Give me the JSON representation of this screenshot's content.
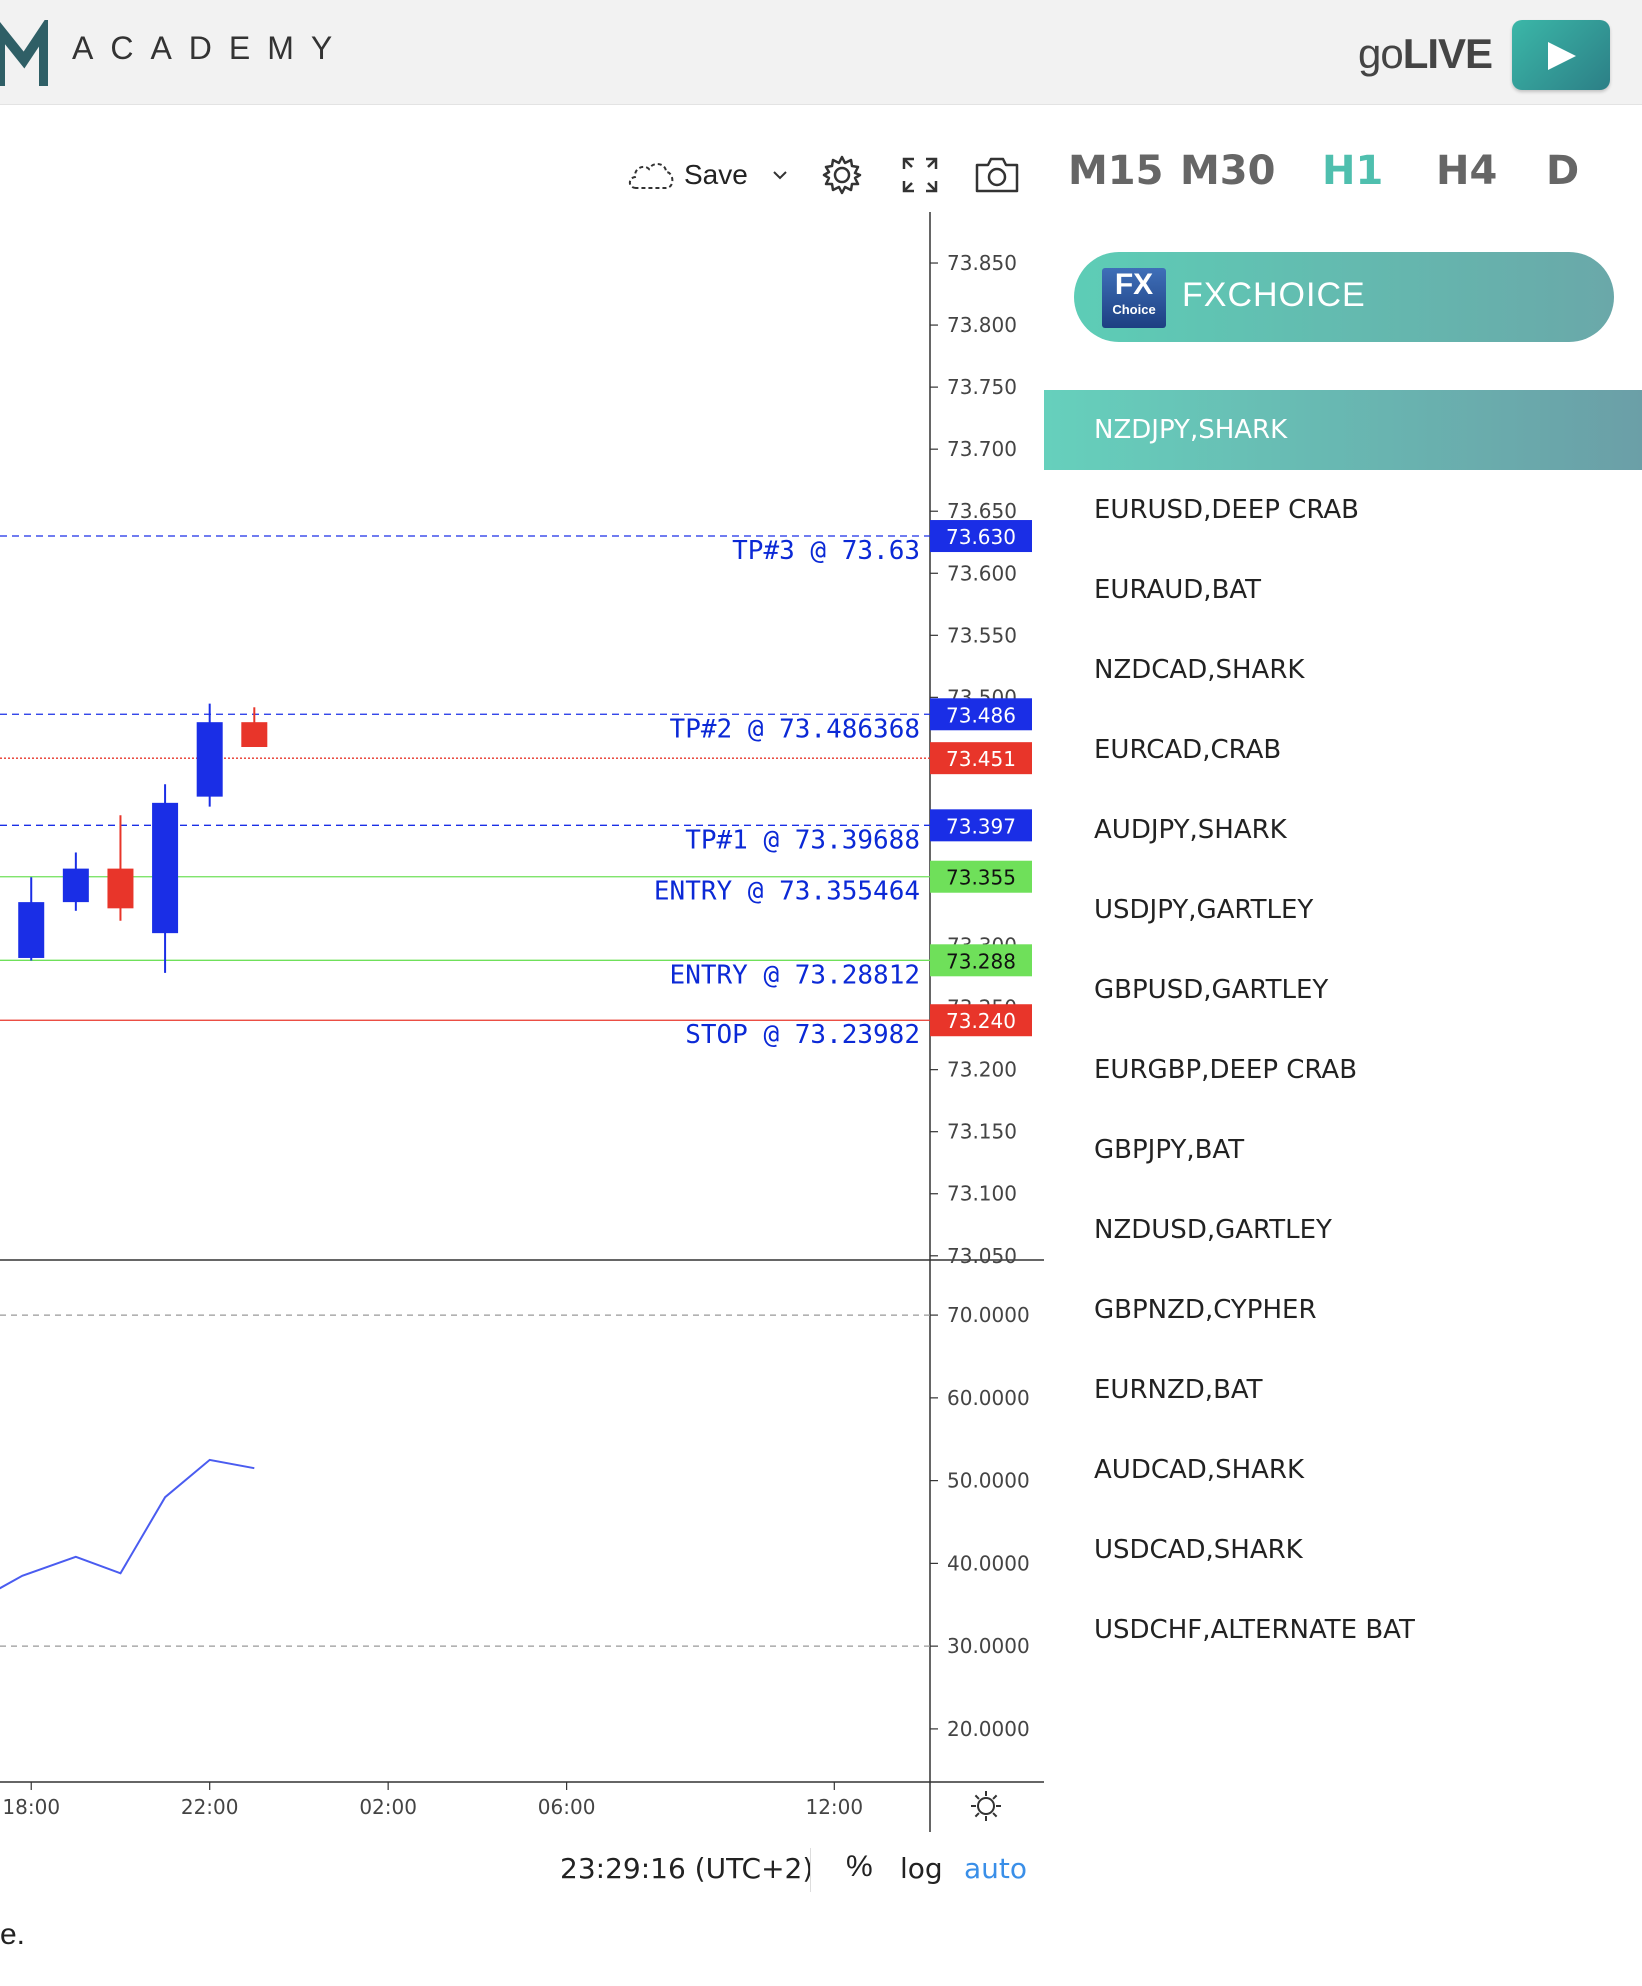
{
  "header": {
    "logo_text": "ACADEMY",
    "golive_prefix": "go",
    "golive_bold": "LIVE"
  },
  "toolbar": {
    "save_label": "Save",
    "icons": [
      "cloud-icon",
      "chevron-down-icon",
      "gear-icon",
      "fullscreen-icon",
      "camera-icon"
    ]
  },
  "timeframes": [
    "M15",
    "M30",
    "H1",
    "H4",
    "D"
  ],
  "active_timeframe": "H1",
  "brand": {
    "name": "FXCHOICE",
    "logo_top": "FX",
    "logo_bottom": "Choice"
  },
  "patterns": [
    "NZDJPY,SHARK",
    "EURUSD,DEEP CRAB",
    "EURAUD,BAT",
    "NZDCAD,SHARK",
    "EURCAD,CRAB",
    "AUDJPY,SHARK",
    "USDJPY,GARTLEY",
    "GBPUSD,GARTLEY",
    "EURGBP,DEEP CRAB",
    "GBPJPY,BAT",
    "NZDUSD,GARTLEY",
    "GBPNZD,CYPHER",
    "EURNZD,BAT",
    "AUDCAD,SHARK",
    "USDCAD,SHARK",
    "USDCHF,ALTERNATE BAT"
  ],
  "active_pattern": "NZDJPY,SHARK",
  "chart_data": {
    "type": "candlestick",
    "price_ticks": [
      "73.850",
      "73.800",
      "73.750",
      "73.700",
      "73.650",
      "73.600",
      "73.550",
      "73.500",
      "73.300",
      "73.250",
      "73.200",
      "73.150",
      "73.100",
      "73.050"
    ],
    "price_ylim": [
      73.045,
      73.875
    ],
    "levels": [
      {
        "label": "TP#3 @ 73.63",
        "value": 73.63,
        "tag": "73.630",
        "color": "#1a2ee6",
        "style": "dashed"
      },
      {
        "label": "TP#2 @ 73.486368",
        "value": 73.486368,
        "tag": "73.486",
        "color": "#1a2ee6",
        "style": "dashed"
      },
      {
        "label": "",
        "value": 73.451,
        "tag": "73.451",
        "color": "#e8352a",
        "style": "dotted"
      },
      {
        "label": "TP#1 @ 73.39688",
        "value": 73.39688,
        "tag": "73.397",
        "color": "#1a2ee6",
        "style": "dashed"
      },
      {
        "label": "ENTRY @ 73.355464",
        "value": 73.355464,
        "tag": "73.355",
        "color": "#6fe05a",
        "style": "solid"
      },
      {
        "label": "ENTRY @ 73.28812",
        "value": 73.28812,
        "tag": "73.288",
        "color": "#6fe05a",
        "style": "solid"
      },
      {
        "label": "STOP @ 73.23982",
        "value": 73.23982,
        "tag": "73.240",
        "color": "#e8352a",
        "style": "solid"
      }
    ],
    "candles": [
      {
        "x": 18.0,
        "open": 73.29,
        "high": 73.355,
        "low": 73.288,
        "close": 73.335,
        "dir": "up"
      },
      {
        "x": 19.0,
        "open": 73.335,
        "high": 73.375,
        "low": 73.328,
        "close": 73.362,
        "dir": "up"
      },
      {
        "x": 20.0,
        "open": 73.362,
        "high": 73.405,
        "low": 73.32,
        "close": 73.33,
        "dir": "down"
      },
      {
        "x": 21.0,
        "open": 73.31,
        "high": 73.43,
        "low": 73.278,
        "close": 73.415,
        "dir": "up"
      },
      {
        "x": 22.0,
        "open": 73.42,
        "high": 73.495,
        "low": 73.412,
        "close": 73.48,
        "dir": "up"
      },
      {
        "x": 23.0,
        "open": 73.48,
        "high": 73.492,
        "low": 73.46,
        "close": 73.46,
        "dir": "down"
      }
    ],
    "indicator_ticks": [
      "70.0000",
      "60.0000",
      "50.0000",
      "40.0000",
      "30.0000",
      "20.0000"
    ],
    "indicator_ylim": [
      16.0,
      74.0
    ],
    "indicator_dashed_levels": [
      70,
      30
    ],
    "indicator_series": {
      "x": [
        16.8,
        17.8,
        19.0,
        20.0,
        21.0,
        22.0,
        23.0
      ],
      "values": [
        35.5,
        38.5,
        40.8,
        38.8,
        48.0,
        52.5,
        51.5
      ]
    },
    "x_ticks": [
      {
        "label": "18:00",
        "x": 18
      },
      {
        "label": "22:00",
        "x": 22
      },
      {
        "label": "02:00",
        "x": 26
      },
      {
        "label": "06:00",
        "x": 30
      },
      {
        "label": "12:00",
        "x": 36
      }
    ],
    "xlim": [
      17.3,
      40.7
    ]
  },
  "bottom_bar": {
    "clock": "23:29:16 (UTC+2)",
    "percent": "%",
    "log": "log",
    "auto": "auto"
  },
  "footer_fragment": "e.",
  "colors": {
    "up": "#1a2ee6",
    "down": "#e8352a",
    "accent": "#4fbfae"
  }
}
